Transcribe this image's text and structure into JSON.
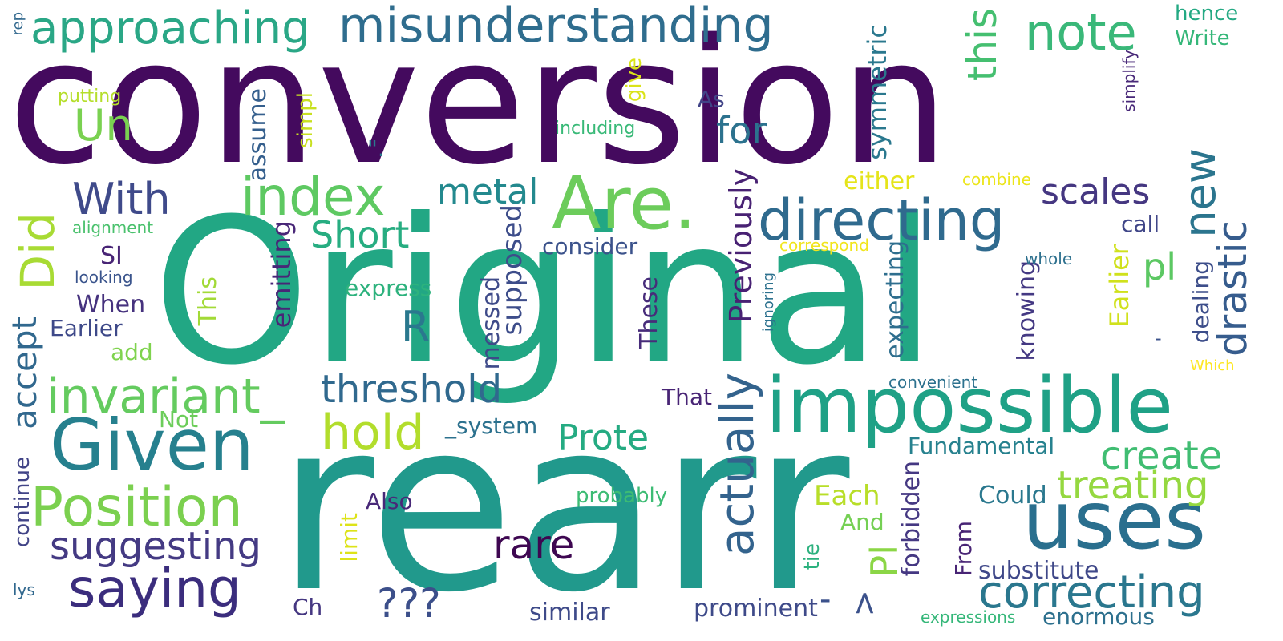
{
  "word_cloud": {
    "words": [
      {
        "text": "conversion",
        "color": "#440a5e"
      },
      {
        "text": "Original",
        "color": "#22a784"
      },
      {
        "text": "rearr",
        "color": "#21998c"
      },
      {
        "text": "misunderstanding",
        "color": "#2f6d8e"
      },
      {
        "text": "approaching",
        "color": "#2aa786"
      },
      {
        "text": "note",
        "color": "#3ab879"
      },
      {
        "text": "impossible",
        "color": "#1fa186"
      },
      {
        "text": "Given",
        "color": "#26808e"
      },
      {
        "text": "uses",
        "color": "#2a6f8e"
      },
      {
        "text": "Are.",
        "color": "#6ccc5b"
      },
      {
        "text": "directing",
        "color": "#2f6a8e"
      },
      {
        "text": "index",
        "color": "#5ec962"
      },
      {
        "text": "invariant_",
        "color": "#64cb5f"
      },
      {
        "text": "Position",
        "color": "#7bd04f"
      },
      {
        "text": "saying",
        "color": "#3b2d7d"
      },
      {
        "text": "correcting",
        "color": "#2a778e"
      },
      {
        "text": "threshold",
        "color": "#30698e"
      },
      {
        "text": "hold",
        "color": "#b2dd2c"
      },
      {
        "text": "suggesting",
        "color": "#443a83"
      },
      {
        "text": "actually",
        "color": "#33638d"
      },
      {
        "text": "With",
        "color": "#3f4a8a"
      },
      {
        "text": "Did",
        "color": "#a8db34"
      },
      {
        "text": "Un",
        "color": "#7ad151"
      },
      {
        "text": "for",
        "color": "#2c728e"
      },
      {
        "text": "this",
        "color": "#45bf70"
      },
      {
        "text": "new",
        "color": "#2b758e"
      },
      {
        "text": "drastic",
        "color": "#365c8d"
      },
      {
        "text": "scales",
        "color": "#453781"
      },
      {
        "text": "metal",
        "color": "#23898e"
      },
      {
        "text": "Short",
        "color": "#27ad81"
      },
      {
        "text": "R",
        "color": "#2a788e"
      },
      {
        "text": "Prote",
        "color": "#25ab82"
      },
      {
        "text": "create",
        "color": "#40bd72"
      },
      {
        "text": "treating",
        "color": "#95d840"
      },
      {
        "text": "rare",
        "color": "#3e0751"
      },
      {
        "text": "???",
        "color": "#3c4f8a"
      },
      {
        "text": "-",
        "color": "#3b518b"
      },
      {
        "text": ">",
        "color": "#3b518b"
      },
      {
        "text": "pl",
        "color": "#5cc863"
      },
      {
        "text": "Pl",
        "color": "#8bd646"
      },
      {
        "text": "accept",
        "color": "#31688e"
      },
      {
        "text": "symmetric",
        "color": "#2a788e"
      },
      {
        "text": "Previously",
        "color": "#482173"
      },
      {
        "text": "supposed",
        "color": "#3d4d8a"
      },
      {
        "text": "messed",
        "color": "#3e4a89"
      },
      {
        "text": "emitting",
        "color": "#482677"
      },
      {
        "text": "These",
        "color": "#472c7a"
      },
      {
        "text": "This",
        "color": "#a2da37"
      },
      {
        "text": "simpl",
        "color": "#c8e020"
      },
      {
        "text": "assume",
        "color": "#355f8d"
      },
      {
        "text": "give",
        "color": "#dae319"
      },
      {
        "text": "expecting",
        "color": "#2e6e8e"
      },
      {
        "text": "knowing",
        "color": "#443983"
      },
      {
        "text": "Earlier",
        "color": "#d0e11c"
      },
      {
        "text": "dealing",
        "color": "#3d4e8a"
      },
      {
        "text": "forbidden",
        "color": "#453882"
      },
      {
        "text": "From",
        "color": "#482475"
      },
      {
        "text": "tie",
        "color": "#2cb17e"
      },
      {
        "text": "limit",
        "color": "#dde318"
      },
      {
        "text": "continue",
        "color": "#414487"
      },
      {
        "text": "consider",
        "color": "#3b528b"
      },
      {
        "text": "express",
        "color": "#2db27d"
      },
      {
        "text": "either",
        "color": "#e5e419"
      },
      {
        "text": "combine",
        "color": "#ece51b"
      },
      {
        "text": "call",
        "color": "#404688"
      },
      {
        "text": "correspond",
        "color": "#f1e51d"
      },
      {
        "text": "whole",
        "color": "#2d708e"
      },
      {
        "text": "As",
        "color": "#414487"
      },
      {
        "text": "including",
        "color": "#38b977"
      },
      {
        "text": "putting",
        "color": "#b5de2b"
      },
      {
        "text": "hence",
        "color": "#23a983"
      },
      {
        "text": "Write",
        "color": "#35b779"
      },
      {
        "text": "simplify",
        "color": "#482878"
      },
      {
        "text": "rep",
        "color": "#31688e"
      },
      {
        "text": "\".",
        "color": "#2a788e"
      },
      {
        "text": "alignment",
        "color": "#4ac16d"
      },
      {
        "text": "SI",
        "color": "#482475"
      },
      {
        "text": "looking",
        "color": "#3a548c"
      },
      {
        "text": "When",
        "color": "#46327e"
      },
      {
        "text": "Earlier",
        "color": "#3e4989"
      },
      {
        "text": "add",
        "color": "#7fd34e"
      },
      {
        "text": "Not",
        "color": "#6ccd5a"
      },
      {
        "text": "_system",
        "color": "#2c718e"
      },
      {
        "text": "That",
        "color": "#482475"
      },
      {
        "text": "Fundamental",
        "color": "#26818e"
      },
      {
        "text": "Each",
        "color": "#b8de29"
      },
      {
        "text": "And",
        "color": "#75d054"
      },
      {
        "text": "Could",
        "color": "#2a788e"
      },
      {
        "text": "Also",
        "color": "#482878"
      },
      {
        "text": "probably",
        "color": "#3dbc74"
      },
      {
        "text": "substitute",
        "color": "#3f4889"
      },
      {
        "text": "prominent",
        "color": "#3e4a89"
      },
      {
        "text": "similar",
        "color": "#3e4a89"
      },
      {
        "text": "Ch",
        "color": "#453781"
      },
      {
        "text": "lys",
        "color": "#31688e"
      },
      {
        "text": "expressions",
        "color": "#35b779"
      },
      {
        "text": "enormous",
        "color": "#2d708e"
      },
      {
        "text": "convenient",
        "color": "#2c718e"
      },
      {
        "text": "ignoring",
        "color": "#2c718e"
      },
      {
        "text": "Which",
        "color": "#fde725"
      },
      {
        "text": "-",
        "color": "#3b528b"
      }
    ]
  }
}
